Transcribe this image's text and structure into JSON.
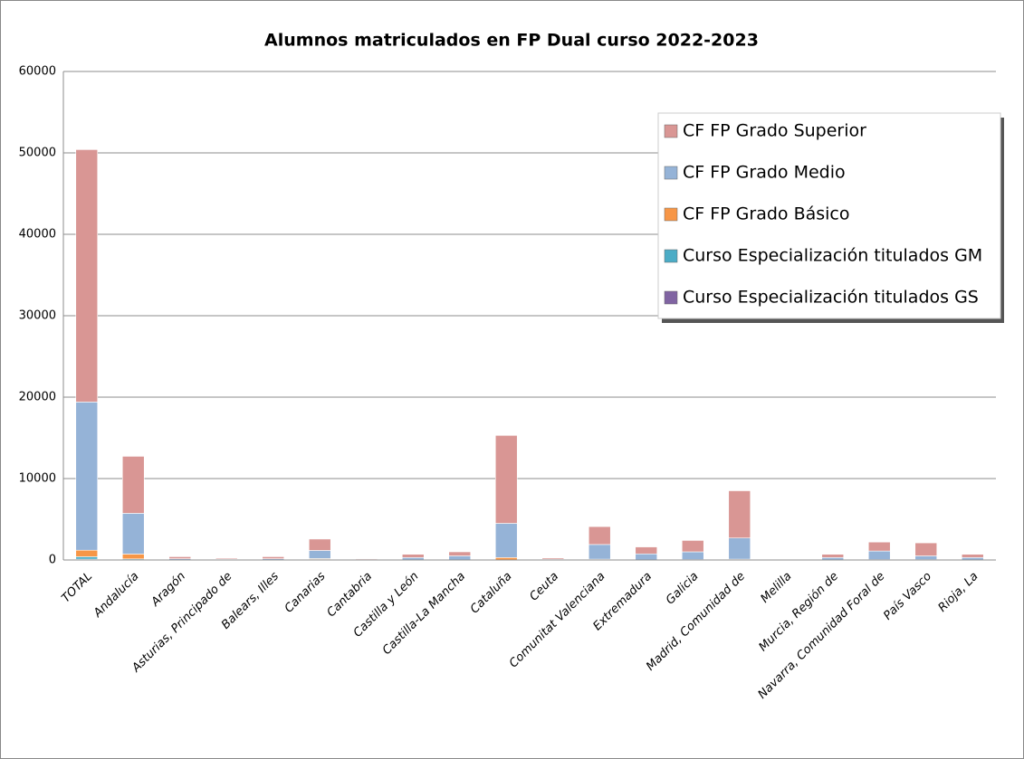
{
  "chart_data": {
    "type": "bar",
    "stacked": true,
    "title": "Alumnos matriculados  en FP Dual curso 2022-2023",
    "categories": [
      "TOTAL",
      "Andalucía",
      "Aragón",
      "Asturias, Principado de",
      "Balears, Illes",
      "Canarias",
      "Cantabria",
      "Castilla y León",
      "Castilla-La Mancha",
      "Cataluña",
      "Ceuta",
      "Comunitat Valenciana",
      "Extremadura",
      "Galicia",
      "Madrid, Comunidad de",
      "Melilla",
      "Murcia, Región de",
      "Navarra, Comunidad Foral de",
      "País Vasco",
      "Rioja, La"
    ],
    "series": [
      {
        "name": "CF FP Grado Superior",
        "color": "#d99694",
        "values": [
          31000,
          7000,
          250,
          120,
          250,
          1400,
          90,
          400,
          500,
          10800,
          150,
          2200,
          850,
          1400,
          5800,
          50,
          400,
          1100,
          1600,
          400
        ]
      },
      {
        "name": "CF FP Grado Medio",
        "color": "#95b3d7",
        "values": [
          18200,
          5000,
          150,
          80,
          150,
          1000,
          60,
          300,
          500,
          4200,
          100,
          1800,
          750,
          950,
          2600,
          50,
          300,
          1050,
          450,
          300
        ]
      },
      {
        "name": "CF FP Grado Básico",
        "color": "#f79646",
        "values": [
          800,
          600,
          0,
          0,
          0,
          100,
          0,
          0,
          0,
          300,
          0,
          100,
          0,
          50,
          100,
          0,
          0,
          50,
          50,
          0
        ]
      },
      {
        "name": "Curso Especialización  titulados GM",
        "color": "#4bacc6",
        "values": [
          300,
          100,
          0,
          0,
          0,
          50,
          0,
          0,
          0,
          0,
          0,
          0,
          0,
          0,
          0,
          0,
          0,
          0,
          0,
          0
        ]
      },
      {
        "name": "Curso Especialización titulados GS",
        "color": "#8064a2",
        "values": [
          100,
          30,
          0,
          0,
          0,
          20,
          0,
          0,
          0,
          0,
          0,
          0,
          0,
          0,
          0,
          0,
          0,
          0,
          0,
          0
        ]
      }
    ],
    "ylim": [
      0,
      60000
    ],
    "yticks": [
      0,
      10000,
      20000,
      30000,
      40000,
      50000,
      60000
    ],
    "grid": true,
    "legend": "upper right"
  }
}
